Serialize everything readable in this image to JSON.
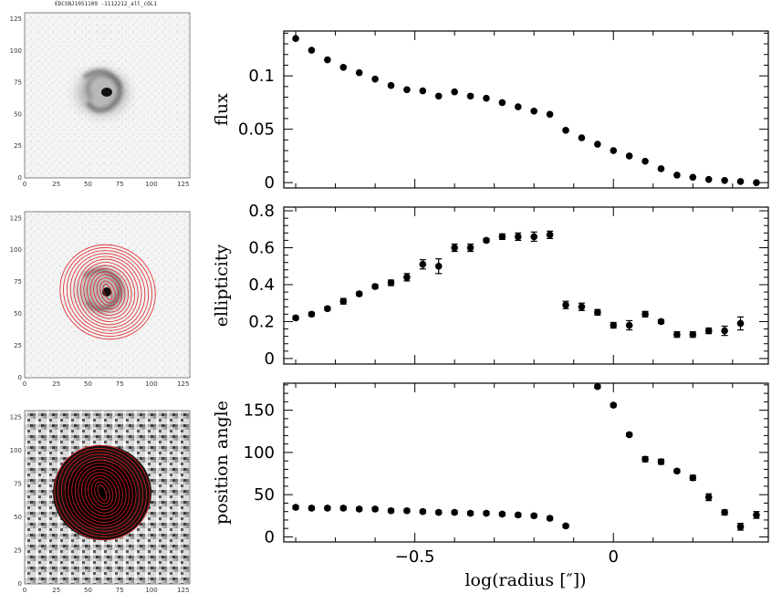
{
  "thumbnails": {
    "title": "EDCSNJ1051109 -1112212_all_cOL1",
    "tick_labels": [
      "0",
      "25",
      "50",
      "75",
      "100",
      "125"
    ],
    "ellipse_color": "#e02020"
  },
  "chart_data": [
    {
      "type": "scatter",
      "ylabel": "flux",
      "xlabel": "",
      "ylim": [
        -0.005,
        0.142
      ],
      "xlim": [
        -0.83,
        0.39
      ],
      "yticks": [
        "0",
        "0.05",
        "0.1"
      ],
      "ytick_values": [
        0,
        0.05,
        0.1
      ],
      "points": [
        [
          -0.8,
          0.135
        ],
        [
          -0.76,
          0.124
        ],
        [
          -0.72,
          0.115
        ],
        [
          -0.68,
          0.108
        ],
        [
          -0.64,
          0.103
        ],
        [
          -0.6,
          0.097
        ],
        [
          -0.56,
          0.091
        ],
        [
          -0.52,
          0.087
        ],
        [
          -0.48,
          0.086
        ],
        [
          -0.44,
          0.081
        ],
        [
          -0.4,
          0.085
        ],
        [
          -0.36,
          0.081
        ],
        [
          -0.32,
          0.079
        ],
        [
          -0.28,
          0.075
        ],
        [
          -0.24,
          0.071
        ],
        [
          -0.2,
          0.067
        ],
        [
          -0.16,
          0.064
        ],
        [
          -0.12,
          0.049
        ],
        [
          -0.08,
          0.042
        ],
        [
          -0.04,
          0.036
        ],
        [
          0.0,
          0.03
        ],
        [
          0.04,
          0.025
        ],
        [
          0.08,
          0.02
        ],
        [
          0.12,
          0.013
        ],
        [
          0.16,
          0.007
        ],
        [
          0.2,
          0.005
        ],
        [
          0.24,
          0.003
        ],
        [
          0.28,
          0.002
        ],
        [
          0.32,
          0.001
        ],
        [
          0.36,
          0.0
        ]
      ],
      "errors": []
    },
    {
      "type": "scatter",
      "ylabel": "ellipticity",
      "xlabel": "",
      "ylim": [
        -0.03,
        0.82
      ],
      "xlim": [
        -0.83,
        0.39
      ],
      "yticks": [
        "0",
        "0.2",
        "0.4",
        "0.6",
        "0.8"
      ],
      "ytick_values": [
        0,
        0.2,
        0.4,
        0.6,
        0.8
      ],
      "points": [
        [
          -0.8,
          0.22
        ],
        [
          -0.76,
          0.24
        ],
        [
          -0.72,
          0.27
        ],
        [
          -0.68,
          0.31
        ],
        [
          -0.64,
          0.35
        ],
        [
          -0.6,
          0.39
        ],
        [
          -0.56,
          0.41
        ],
        [
          -0.52,
          0.44
        ],
        [
          -0.48,
          0.51
        ],
        [
          -0.44,
          0.5
        ],
        [
          -0.4,
          0.6
        ],
        [
          -0.36,
          0.6
        ],
        [
          -0.32,
          0.64
        ],
        [
          -0.28,
          0.66
        ],
        [
          -0.24,
          0.66
        ],
        [
          -0.2,
          0.66
        ],
        [
          -0.16,
          0.67
        ],
        [
          -0.12,
          0.29
        ],
        [
          -0.08,
          0.28
        ],
        [
          -0.04,
          0.25
        ],
        [
          0.0,
          0.18
        ],
        [
          0.04,
          0.18
        ],
        [
          0.08,
          0.24
        ],
        [
          0.12,
          0.2
        ],
        [
          0.16,
          0.13
        ],
        [
          0.2,
          0.13
        ],
        [
          0.24,
          0.15
        ],
        [
          0.28,
          0.15
        ],
        [
          0.32,
          0.19
        ]
      ],
      "errors": [
        0.01,
        0.01,
        0.01,
        0.015,
        0.01,
        0.01,
        0.015,
        0.02,
        0.025,
        0.04,
        0.02,
        0.02,
        0.01,
        0.015,
        0.02,
        0.025,
        0.02,
        0.02,
        0.02,
        0.015,
        0.015,
        0.025,
        0.015,
        0.01,
        0.015,
        0.015,
        0.015,
        0.025,
        0.035
      ]
    },
    {
      "type": "scatter",
      "ylabel": "position angle",
      "xlabel": "log(radius [″])",
      "ylim": [
        -6,
        182
      ],
      "xlim": [
        -0.83,
        0.39
      ],
      "xticks": [
        "−0.5",
        "0"
      ],
      "xtick_values": [
        -0.5,
        0.0
      ],
      "yticks": [
        "0",
        "50",
        "100",
        "150"
      ],
      "ytick_values": [
        0,
        50,
        100,
        150
      ],
      "points": [
        [
          -0.8,
          35
        ],
        [
          -0.76,
          34
        ],
        [
          -0.72,
          34
        ],
        [
          -0.68,
          34
        ],
        [
          -0.64,
          33
        ],
        [
          -0.6,
          33
        ],
        [
          -0.56,
          31
        ],
        [
          -0.52,
          31
        ],
        [
          -0.48,
          30
        ],
        [
          -0.44,
          29
        ],
        [
          -0.4,
          29
        ],
        [
          -0.36,
          28
        ],
        [
          -0.32,
          28
        ],
        [
          -0.28,
          27
        ],
        [
          -0.24,
          26
        ],
        [
          -0.2,
          25
        ],
        [
          -0.16,
          22
        ],
        [
          -0.12,
          13
        ],
        [
          -0.04,
          178
        ],
        [
          0.0,
          156
        ],
        [
          0.04,
          121
        ],
        [
          0.08,
          92
        ],
        [
          0.12,
          89
        ],
        [
          0.16,
          78
        ],
        [
          0.2,
          70
        ],
        [
          0.24,
          47
        ],
        [
          0.28,
          29
        ],
        [
          0.32,
          12
        ],
        [
          0.36,
          26
        ]
      ],
      "errors": [
        2,
        2,
        2,
        2,
        2,
        2,
        2,
        2,
        2,
        2,
        2,
        2,
        2,
        2,
        2,
        2,
        2,
        2,
        2,
        2,
        2,
        3,
        3,
        2,
        3,
        4,
        3,
        4,
        4
      ]
    }
  ]
}
